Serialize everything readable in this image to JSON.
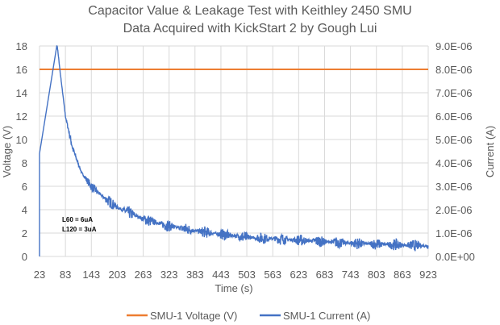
{
  "chart_data": {
    "type": "line",
    "title": "Capacitor Value & Leakage Test with Keithley 2450 SMU",
    "subtitle": "Data Acquired with KickStart 2 by Gough Lui",
    "xlabel": "Time (s)",
    "ylabel": "Voltage (V)",
    "y2label": "Current (A)",
    "xlim": [
      23,
      923
    ],
    "ylim": [
      0,
      18
    ],
    "y2lim": [
      0,
      9e-06
    ],
    "x_ticks": [
      "23",
      "83",
      "143",
      "203",
      "263",
      "323",
      "383",
      "443",
      "503",
      "563",
      "623",
      "683",
      "743",
      "803",
      "863",
      "923"
    ],
    "y_ticks": [
      "0",
      "2",
      "4",
      "6",
      "8",
      "10",
      "12",
      "14",
      "16",
      "18"
    ],
    "y2_ticks": [
      "0.0E+00",
      "1.0E-06",
      "2.0E-06",
      "3.0E-06",
      "4.0E-06",
      "5.0E-06",
      "6.0E-06",
      "7.0E-06",
      "8.0E-06",
      "9.0E-06"
    ],
    "grid": true,
    "legend_position": "bottom",
    "annotations": [
      "L60 = 6uA",
      "L120 = 3uA"
    ],
    "series": [
      {
        "name": "SMU-1 Voltage (V)",
        "axis": "left",
        "color": "#ED7D31",
        "x": [
          23,
          923
        ],
        "y": [
          16,
          16
        ]
      },
      {
        "name": "SMU-1 Current (A)",
        "axis": "right",
        "color": "#4472C4",
        "x": [
          63,
          70,
          83,
          100,
          120,
          143,
          173,
          203,
          263,
          323,
          383,
          443,
          503,
          623,
          743,
          923
        ],
        "y": [
          9.2e-06,
          8e-06,
          6e-06,
          4.6e-06,
          3.6e-06,
          3e-06,
          2.5e-06,
          2.1e-06,
          1.6e-06,
          1.3e-06,
          1.1e-06,
          9.5e-07,
          8.2e-07,
          7e-07,
          5.7e-07,
          4.5e-07
        ],
        "noise_amplitude": 2.5e-07
      }
    ]
  }
}
